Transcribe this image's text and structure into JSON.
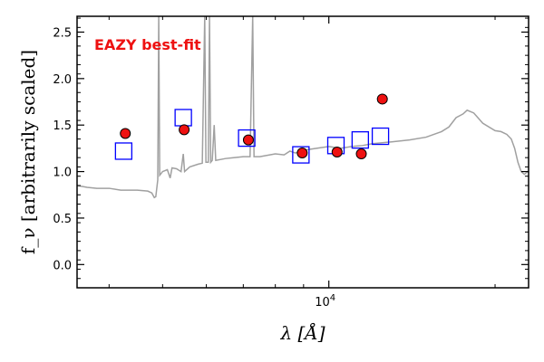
{
  "chart_data": {
    "type": "scatter",
    "xlabel": "λ [Å]",
    "ylabel": "f_ν [arbitrarily scaled]",
    "x_scale": "log",
    "xlim": [
      3500,
      23000
    ],
    "ylim": [
      -0.25,
      2.67
    ],
    "y_ticks": [
      0.0,
      0.5,
      1.0,
      1.5,
      2.0,
      2.5
    ],
    "y_tick_labels": [
      "0.0",
      "0.5",
      "1.0",
      "1.5",
      "2.0",
      "2.5"
    ],
    "x_tick_value": 10000,
    "x_tick_label": "10",
    "x_tick_exponent": "4",
    "annotation": "EAZY best-fit",
    "annotation_color": "#ee1111",
    "grid": false,
    "series": [
      {
        "kind": "line",
        "color": "#a0a0a0",
        "points": [
          [
            3500,
            0.85
          ],
          [
            3650,
            0.83
          ],
          [
            3800,
            0.82
          ],
          [
            4000,
            0.82
          ],
          [
            4200,
            0.8
          ],
          [
            4500,
            0.8
          ],
          [
            4700,
            0.79
          ],
          [
            4780,
            0.77
          ],
          [
            4830,
            0.72
          ],
          [
            4860,
            0.73
          ],
          [
            4900,
            0.91
          ],
          [
            4920,
            2.67
          ],
          [
            4940,
            0.96
          ],
          [
            5000,
            1.0
          ],
          [
            5100,
            1.02
          ],
          [
            5160,
            0.93
          ],
          [
            5200,
            1.04
          ],
          [
            5300,
            1.03
          ],
          [
            5400,
            1.0
          ],
          [
            5450,
            1.19
          ],
          [
            5480,
            1.0
          ],
          [
            5600,
            1.05
          ],
          [
            5800,
            1.08
          ],
          [
            5900,
            1.09
          ],
          [
            5960,
            2.67
          ],
          [
            5990,
            1.1
          ],
          [
            6050,
            1.1
          ],
          [
            6080,
            2.67
          ],
          [
            6110,
            1.1
          ],
          [
            6150,
            1.12
          ],
          [
            6200,
            1.5
          ],
          [
            6240,
            1.12
          ],
          [
            6500,
            1.14
          ],
          [
            7000,
            1.16
          ],
          [
            7200,
            1.16
          ],
          [
            7280,
            2.67
          ],
          [
            7320,
            1.16
          ],
          [
            7500,
            1.16
          ],
          [
            8000,
            1.19
          ],
          [
            8300,
            1.18
          ],
          [
            8500,
            1.22
          ],
          [
            8700,
            1.2
          ],
          [
            9000,
            1.23
          ],
          [
            9500,
            1.25
          ],
          [
            10000,
            1.27
          ],
          [
            10500,
            1.25
          ],
          [
            11000,
            1.27
          ],
          [
            11500,
            1.28
          ],
          [
            12000,
            1.3
          ],
          [
            13000,
            1.32
          ],
          [
            14000,
            1.34
          ],
          [
            15000,
            1.37
          ],
          [
            15500,
            1.4
          ],
          [
            16000,
            1.43
          ],
          [
            16500,
            1.48
          ],
          [
            17000,
            1.58
          ],
          [
            17500,
            1.62
          ],
          [
            17800,
            1.66
          ],
          [
            18300,
            1.63
          ],
          [
            19000,
            1.52
          ],
          [
            20000,
            1.44
          ],
          [
            20500,
            1.43
          ],
          [
            21000,
            1.4
          ],
          [
            21400,
            1.35
          ],
          [
            21700,
            1.25
          ],
          [
            22000,
            1.1
          ],
          [
            22300,
            1.0
          ],
          [
            22600,
            0.97
          ],
          [
            22900,
            1.0
          ],
          [
            23000,
            0.99
          ]
        ]
      },
      {
        "kind": "marker",
        "marker": "open-square",
        "color": "#0000ff",
        "points": [
          [
            4250,
            1.22
          ],
          [
            5450,
            1.58
          ],
          [
            7100,
            1.36
          ],
          [
            8900,
            1.18
          ],
          [
            10300,
            1.28
          ],
          [
            11400,
            1.34
          ],
          [
            12400,
            1.38
          ]
        ]
      },
      {
        "kind": "marker",
        "marker": "filled-circle",
        "color": "#ee1111",
        "points": [
          [
            4280,
            1.41
          ],
          [
            5470,
            1.45
          ],
          [
            7150,
            1.34
          ],
          [
            8950,
            1.2
          ],
          [
            10350,
            1.21
          ],
          [
            11450,
            1.19
          ],
          [
            12500,
            1.78
          ]
        ]
      }
    ]
  }
}
